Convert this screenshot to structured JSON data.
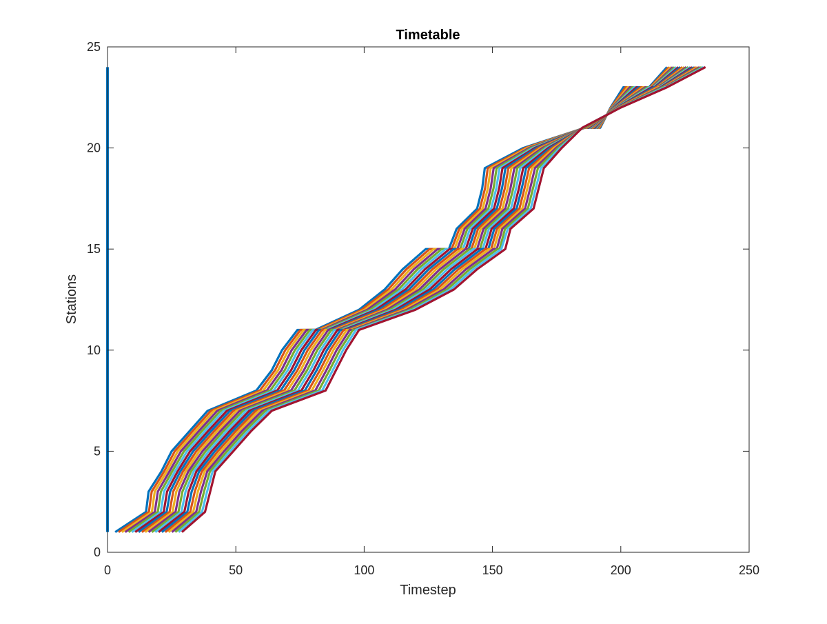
{
  "chart_data": {
    "type": "line",
    "title": "Timetable",
    "xlabel": "Timestep",
    "ylabel": "Stations",
    "xlim": [
      0,
      250
    ],
    "ylim": [
      0,
      25
    ],
    "xticks": [
      0,
      50,
      100,
      150,
      200,
      250
    ],
    "yticks": [
      0,
      5,
      10,
      15,
      20,
      25
    ],
    "grid": false,
    "box": true,
    "legend": "none",
    "colors": [
      "#0072BD",
      "#D95319",
      "#EDB120",
      "#7E2F8E",
      "#77AC30",
      "#4DBEEE",
      "#A2142F"
    ],
    "stations": [
      1,
      2,
      3,
      4,
      5,
      6,
      7,
      8,
      9,
      10,
      11,
      12,
      13,
      14,
      15,
      16,
      17,
      18,
      19,
      20,
      21,
      22,
      23,
      24
    ],
    "vertical_series": {
      "x": 0,
      "y_range": [
        1,
        24
      ],
      "color": "#0072BD"
    },
    "reference_trains": {
      "first": [
        3,
        15,
        16,
        21,
        25,
        32,
        39,
        58,
        64,
        68,
        74,
        98,
        108,
        115,
        124,
        136,
        144,
        146,
        147,
        162,
        186,
        196,
        201,
        218
      ],
      "last": [
        29,
        38,
        40,
        42,
        49,
        56,
        64,
        85,
        89,
        93,
        98,
        120,
        135,
        144,
        155,
        157,
        166,
        168,
        170,
        177,
        185,
        200,
        218,
        233
      ]
    },
    "trains_per_group": 7,
    "station_dwells": [
      {
        "station": 11,
        "dwell": [
          0,
          7
        ]
      },
      {
        "station": 15,
        "dwell": [
          0,
          9
        ]
      },
      {
        "station": 21,
        "dwell": [
          0,
          6
        ]
      },
      {
        "station": 23,
        "dwell": [
          0,
          10
        ]
      }
    ],
    "train_count": 21
  }
}
